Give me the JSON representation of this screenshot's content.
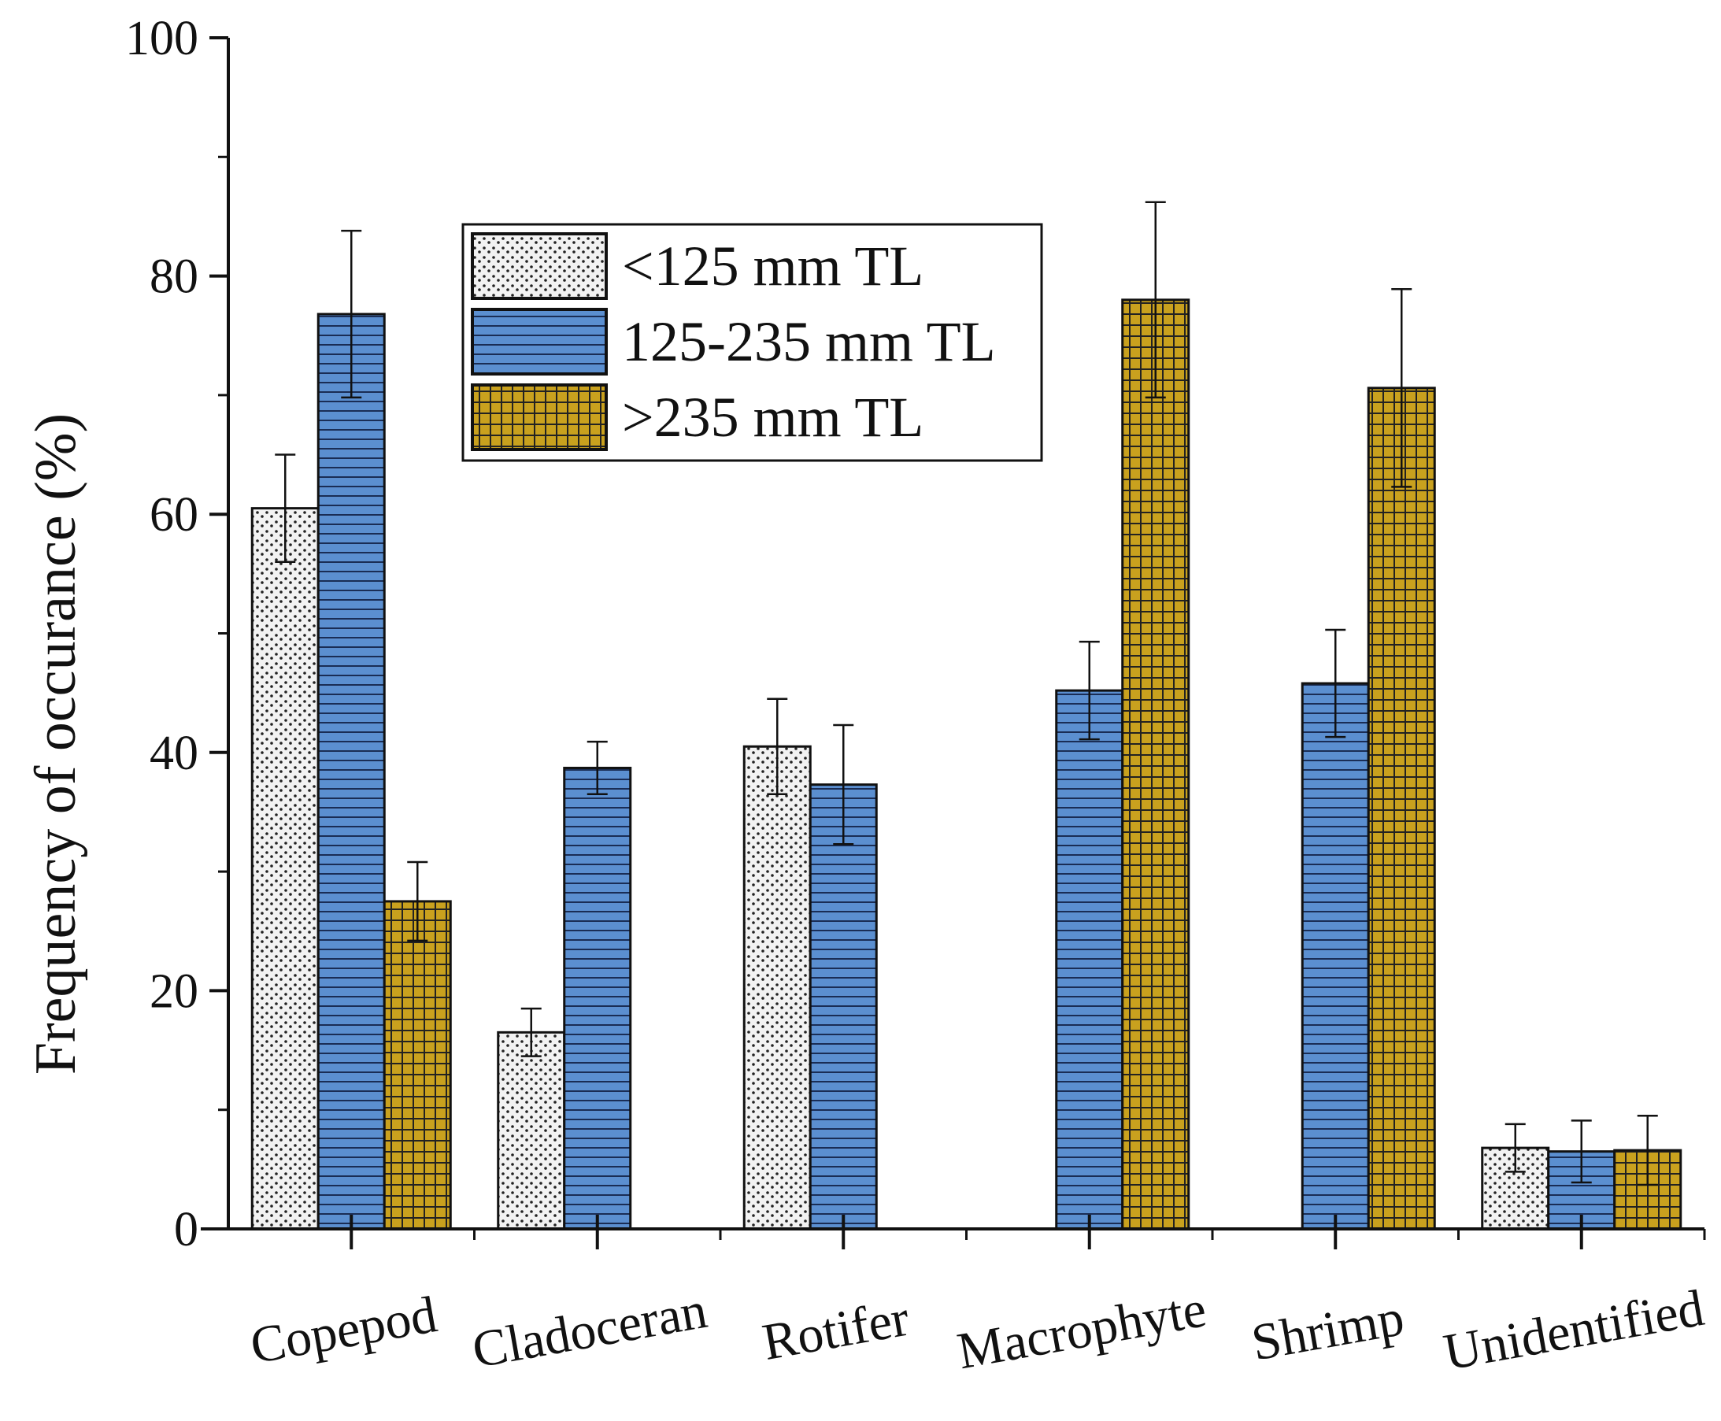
{
  "chart_data": {
    "type": "bar",
    "title": "",
    "xlabel": "",
    "ylabel": "Frequency of occurance (%)",
    "ylim": [
      0,
      100
    ],
    "yticks": [
      0,
      20,
      40,
      60,
      80,
      100
    ],
    "categories": [
      "Copepod",
      "Cladoceran",
      "Rotifer",
      "Macrophyte",
      "Shrimp",
      "Unidentified"
    ],
    "legend_position": "top-center",
    "series": [
      {
        "name": "<125 mm TL",
        "color": "#f2f2f2",
        "pattern": "dots",
        "values": [
          60.5,
          16.5,
          40.5,
          null,
          null,
          6.8
        ],
        "errors": [
          4.5,
          2.0,
          4.0,
          null,
          null,
          2.0
        ]
      },
      {
        "name": "125-235 mm TL",
        "color": "#5b8fd0",
        "pattern": "horizontal-lines",
        "values": [
          76.8,
          38.7,
          37.3,
          45.2,
          45.8,
          6.5
        ],
        "errors": [
          7.0,
          2.2,
          5.0,
          4.1,
          4.5,
          2.6
        ]
      },
      {
        "name": ">235 mm TL",
        "color": "#c9a11e",
        "pattern": "grid",
        "values": [
          27.5,
          null,
          null,
          78.0,
          70.6,
          6.6
        ],
        "errors": [
          3.3,
          null,
          null,
          8.2,
          8.3,
          2.9
        ]
      }
    ]
  }
}
